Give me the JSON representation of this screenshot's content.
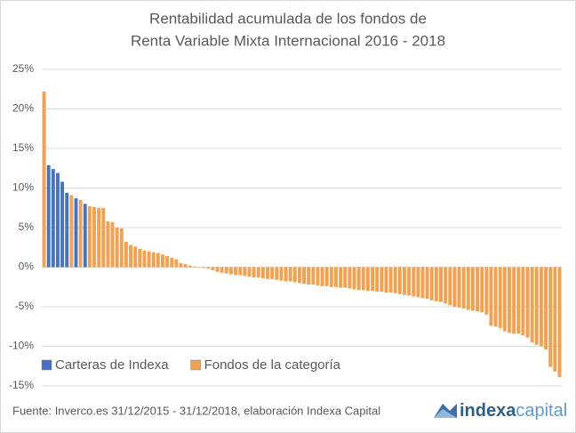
{
  "chart_data": {
    "type": "bar",
    "title": [
      "Rentabilidad acumulada de los fondos de",
      "Renta Variable Mixta Internacional 2016 - 2018"
    ],
    "series": [
      {
        "name": "Carteras de Indexa",
        "color": "#4472c4",
        "values": [
          null,
          12.9,
          12.4,
          11.9,
          10.8,
          9.4,
          null,
          8.7,
          null,
          8.0,
          null,
          null,
          null,
          null,
          null,
          null,
          null,
          null,
          null,
          null,
          null,
          null,
          null,
          null,
          null,
          null,
          null,
          null,
          null,
          null,
          null,
          null,
          null,
          null,
          null,
          null,
          null,
          null,
          null,
          null,
          null,
          null,
          null,
          null,
          null,
          null,
          null,
          null,
          null,
          null,
          null,
          null,
          null,
          null,
          null,
          null,
          null,
          null,
          null,
          null,
          null,
          null,
          null,
          null,
          null,
          null,
          null,
          null,
          null,
          null,
          null,
          null,
          null,
          null,
          null,
          null,
          null,
          null,
          null,
          null,
          null,
          null,
          null,
          null,
          null,
          null,
          null,
          null,
          null,
          null,
          null,
          null,
          null,
          null,
          null,
          null,
          null,
          null,
          null,
          null,
          null,
          null,
          null,
          null,
          null,
          null,
          null,
          null,
          null,
          null,
          null,
          null,
          null,
          null
        ]
      },
      {
        "name": "Fondos de la categoría",
        "color": "#f5a04f",
        "values": [
          22.2,
          null,
          null,
          null,
          null,
          null,
          9.1,
          null,
          8.5,
          null,
          7.7,
          7.6,
          7.5,
          7.5,
          5.8,
          5.7,
          5.0,
          4.9,
          3.2,
          2.8,
          2.6,
          2.3,
          2.1,
          2.0,
          1.9,
          1.8,
          1.6,
          1.4,
          1.2,
          1.0,
          0.5,
          0.4,
          0.2,
          0.1,
          0.0,
          -0.1,
          -0.2,
          -0.4,
          -0.6,
          -0.7,
          -0.8,
          -0.9,
          -1.0,
          -1.0,
          -1.1,
          -1.2,
          -1.3,
          -1.3,
          -1.4,
          -1.5,
          -1.5,
          -1.6,
          -1.7,
          -1.8,
          -1.8,
          -1.9,
          -2.0,
          -2.1,
          -2.2,
          -2.2,
          -2.3,
          -2.4,
          -2.4,
          -2.5,
          -2.5,
          -2.6,
          -2.6,
          -2.7,
          -2.8,
          -2.9,
          -2.9,
          -3.0,
          -3.0,
          -3.1,
          -3.1,
          -3.2,
          -3.2,
          -3.3,
          -3.4,
          -3.5,
          -3.6,
          -3.7,
          -3.8,
          -3.9,
          -4.0,
          -4.2,
          -4.3,
          -4.4,
          -4.6,
          -4.8,
          -5.0,
          -5.1,
          -5.2,
          -5.4,
          -5.5,
          -5.6,
          -5.7,
          -6.0,
          -7.4,
          -7.5,
          -7.7,
          -8.1,
          -8.3,
          -8.4,
          -8.4,
          -8.6,
          -8.9,
          -9.5,
          -9.8,
          -10.0,
          -10.4,
          -12.6,
          -13.2,
          -13.9
        ]
      }
    ],
    "ylim": [
      -15,
      25
    ],
    "yticks": [
      {
        "value": -15,
        "label": "-15%"
      },
      {
        "value": -10,
        "label": "-10%"
      },
      {
        "value": -5,
        "label": "-5%"
      },
      {
        "value": 0,
        "label": "0%"
      },
      {
        "value": 5,
        "label": "5%"
      },
      {
        "value": 10,
        "label": "10%"
      },
      {
        "value": 15,
        "label": "15%"
      },
      {
        "value": 20,
        "label": "20%"
      },
      {
        "value": 25,
        "label": "25%"
      }
    ],
    "grid": true,
    "legend": "bottom-left",
    "source": "Fuente: Inverco.es  31/12/2015 - 31/12/2018, elaboración Indexa Capital",
    "logo": [
      "indexa",
      "capital"
    ]
  }
}
